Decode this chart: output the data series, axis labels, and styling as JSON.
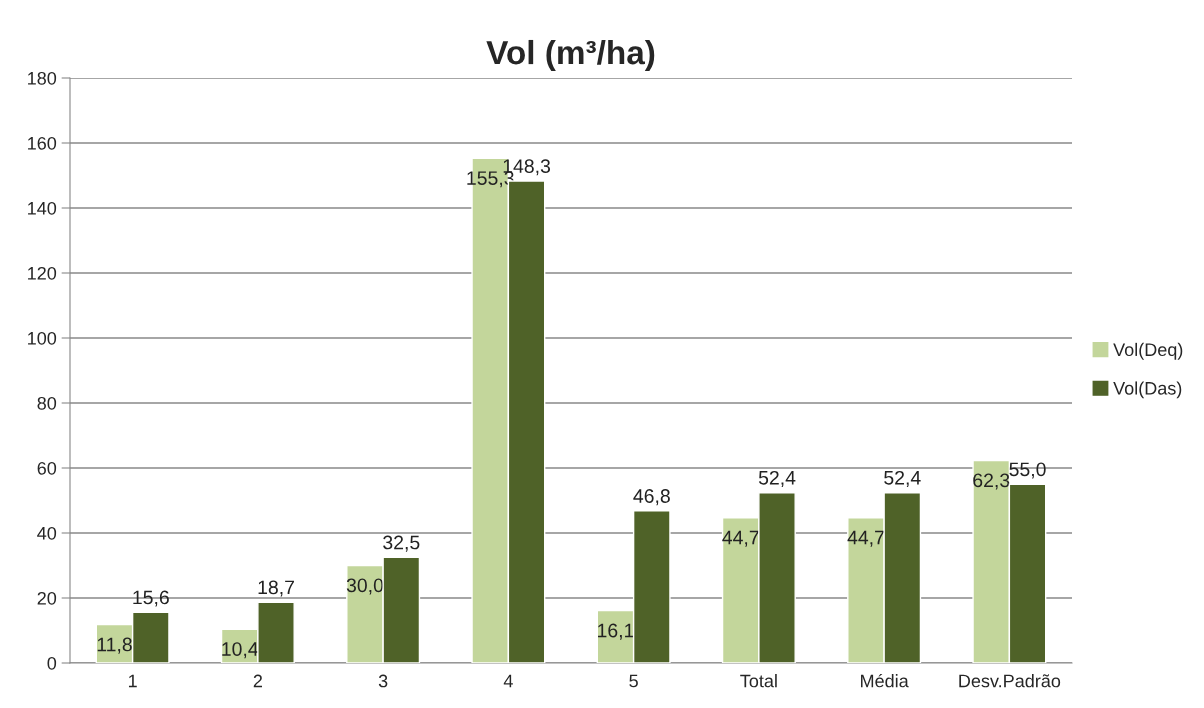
{
  "chart_data": {
    "type": "bar",
    "title": "Vol (m³/ha)",
    "categories": [
      "1",
      "2",
      "3",
      "4",
      "5",
      "Total",
      "Média",
      "Desv.Padrão"
    ],
    "series": [
      {
        "name": "Vol(Deq)",
        "color": "#c3d69b",
        "values": [
          11.8,
          10.4,
          30.0,
          155.3,
          16.1,
          44.7,
          44.7,
          62.3
        ],
        "value_labels": [
          "11,8",
          "10,4",
          "30,0",
          "155,3",
          "16,1",
          "44,7",
          "44,7",
          "62,3"
        ]
      },
      {
        "name": "Vol(Das)",
        "color": "#4f6228",
        "values": [
          15.6,
          18.7,
          32.5,
          148.3,
          46.8,
          52.4,
          52.4,
          55.0
        ],
        "value_labels": [
          "15,6",
          "18,7",
          "32,5",
          "148,3",
          "46,8",
          "52,4",
          "52,4",
          "55,0"
        ]
      }
    ],
    "ylim": [
      0,
      180
    ],
    "yticks": [
      0,
      20,
      40,
      60,
      80,
      100,
      120,
      140,
      160,
      180
    ],
    "grid": "y",
    "legend": "right"
  }
}
